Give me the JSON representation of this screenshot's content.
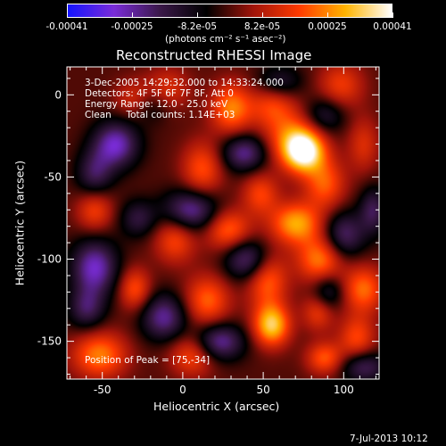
{
  "colorbar": {
    "tick_labels": [
      "-0.00041",
      "-0.00025",
      "-8.2e-05",
      "8.2e-05",
      "0.00025",
      "0.00041"
    ],
    "unit_label": "(photons cm⁻² s⁻¹ asec⁻²)",
    "colors": [
      "#1414ff",
      "#7a2cd8",
      "#3a1848",
      "#000000",
      "#a0140a",
      "#ff3a00",
      "#ffb400",
      "#ffffff"
    ]
  },
  "chart_data": {
    "type": "heatmap",
    "title": "Reconstructed RHESSI Image",
    "xlabel": "Heliocentric X (arcsec)",
    "ylabel": "Heliocentric Y (arcsec)",
    "xlim": [
      -72,
      122
    ],
    "ylim": [
      -173,
      17
    ],
    "xticks": [
      -50,
      0,
      50,
      100
    ],
    "yticks": [
      0,
      -50,
      -100,
      -150
    ],
    "annotations": [
      "3-Dec-2005 14:29:32.000 to 14:33:24.000",
      "Detectors: 4F 5F 6F 7F 8F, Att 0",
      "Energy Range: 12.0 - 25.0 keV",
      "Clean     Total counts: 1.14E+03"
    ],
    "peak_label": "Position of Peak = [75,-34]",
    "peak": {
      "x": 75,
      "y": -34
    },
    "blobs": [
      {
        "x": 75,
        "y": -34,
        "sx": 9,
        "sy": 9,
        "v": 0.00041
      },
      {
        "x": 66,
        "y": -25,
        "sx": 12,
        "sy": 12,
        "v": 0.00018
      },
      {
        "x": 88,
        "y": -54,
        "sx": 9,
        "sy": 11,
        "v": 0.0002
      },
      {
        "x": 30,
        "y": -8,
        "sx": 9,
        "sy": 11,
        "v": 0.00024
      },
      {
        "x": -10,
        "y": 4,
        "sx": 10,
        "sy": 9,
        "v": 0.00014
      },
      {
        "x": -30,
        "y": -2,
        "sx": 9,
        "sy": 8,
        "v": 0.00013
      },
      {
        "x": 55,
        "y": -6,
        "sx": 10,
        "sy": 9,
        "v": 0.00015
      },
      {
        "x": 98,
        "y": 6,
        "sx": 10,
        "sy": 10,
        "v": 0.00016
      },
      {
        "x": 112,
        "y": -30,
        "sx": 7,
        "sy": 12,
        "v": 0.00013
      },
      {
        "x": 12,
        "y": -45,
        "sx": 9,
        "sy": 12,
        "v": 0.00019
      },
      {
        "x": 48,
        "y": -60,
        "sx": 8,
        "sy": 9,
        "v": 0.00017
      },
      {
        "x": -55,
        "y": -70,
        "sx": 8,
        "sy": 9,
        "v": 0.00017
      },
      {
        "x": -5,
        "y": -88,
        "sx": 9,
        "sy": 10,
        "v": 0.00018
      },
      {
        "x": 28,
        "y": -82,
        "sx": 10,
        "sy": 9,
        "v": 0.00022
      },
      {
        "x": 70,
        "y": -78,
        "sx": 11,
        "sy": 9,
        "v": 0.00028
      },
      {
        "x": 85,
        "y": -100,
        "sx": 10,
        "sy": 10,
        "v": 0.00024
      },
      {
        "x": 52,
        "y": -112,
        "sx": 9,
        "sy": 12,
        "v": 0.00022
      },
      {
        "x": 15,
        "y": -125,
        "sx": 10,
        "sy": 11,
        "v": 0.00021
      },
      {
        "x": -30,
        "y": -118,
        "sx": 7,
        "sy": 9,
        "v": 0.00019
      },
      {
        "x": 55,
        "y": -140,
        "sx": 8,
        "sy": 9,
        "v": 0.00033
      },
      {
        "x": 112,
        "y": -118,
        "sx": 9,
        "sy": 10,
        "v": 0.00022
      },
      {
        "x": 108,
        "y": -148,
        "sx": 8,
        "sy": 10,
        "v": 0.00018
      },
      {
        "x": -52,
        "y": -158,
        "sx": 12,
        "sy": 10,
        "v": 0.00024
      },
      {
        "x": 6,
        "y": -158,
        "sx": 10,
        "sy": 9,
        "v": 0.00019
      },
      {
        "x": 88,
        "y": -160,
        "sx": 8,
        "sy": 7,
        "v": 0.0002
      },
      {
        "x": 84,
        "y": -132,
        "sx": 7,
        "sy": 8,
        "v": 0.00016
      },
      {
        "x": -42,
        "y": -30,
        "sx": 10,
        "sy": 10,
        "v": -0.00028
      },
      {
        "x": -55,
        "y": -48,
        "sx": 8,
        "sy": 10,
        "v": -0.00018
      },
      {
        "x": 38,
        "y": -35,
        "sx": 10,
        "sy": 8,
        "v": -0.00024
      },
      {
        "x": 5,
        "y": -70,
        "sx": 12,
        "sy": 9,
        "v": -0.00026
      },
      {
        "x": 40,
        "y": -100,
        "sx": 10,
        "sy": 9,
        "v": -0.00024
      },
      {
        "x": -55,
        "y": -105,
        "sx": 10,
        "sy": 12,
        "v": -0.00028
      },
      {
        "x": -60,
        "y": -130,
        "sx": 8,
        "sy": 9,
        "v": -0.00018
      },
      {
        "x": -12,
        "y": -135,
        "sx": 10,
        "sy": 10,
        "v": -0.00024
      },
      {
        "x": 22,
        "y": -150,
        "sx": 11,
        "sy": 8,
        "v": -0.00026
      },
      {
        "x": 100,
        "y": -85,
        "sx": 9,
        "sy": 10,
        "v": -0.00021
      },
      {
        "x": 88,
        "y": -12,
        "sx": 9,
        "sy": 8,
        "v": -0.00015
      },
      {
        "x": 118,
        "y": -70,
        "sx": 6,
        "sy": 10,
        "v": -0.00018
      },
      {
        "x": 112,
        "y": -165,
        "sx": 10,
        "sy": 7,
        "v": -0.0002
      },
      {
        "x": 60,
        "y": 8,
        "sx": 10,
        "sy": 7,
        "v": -0.00014
      },
      {
        "x": -20,
        "y": -5,
        "sx": 8,
        "sy": 8,
        "v": -0.00012
      },
      {
        "x": 90,
        "y": -120,
        "sx": 7,
        "sy": 8,
        "v": -0.00016
      },
      {
        "x": -28,
        "y": -75,
        "sx": 8,
        "sy": 8,
        "v": -0.00015
      }
    ]
  },
  "footer_date": "7-Jul-2013 10:12"
}
